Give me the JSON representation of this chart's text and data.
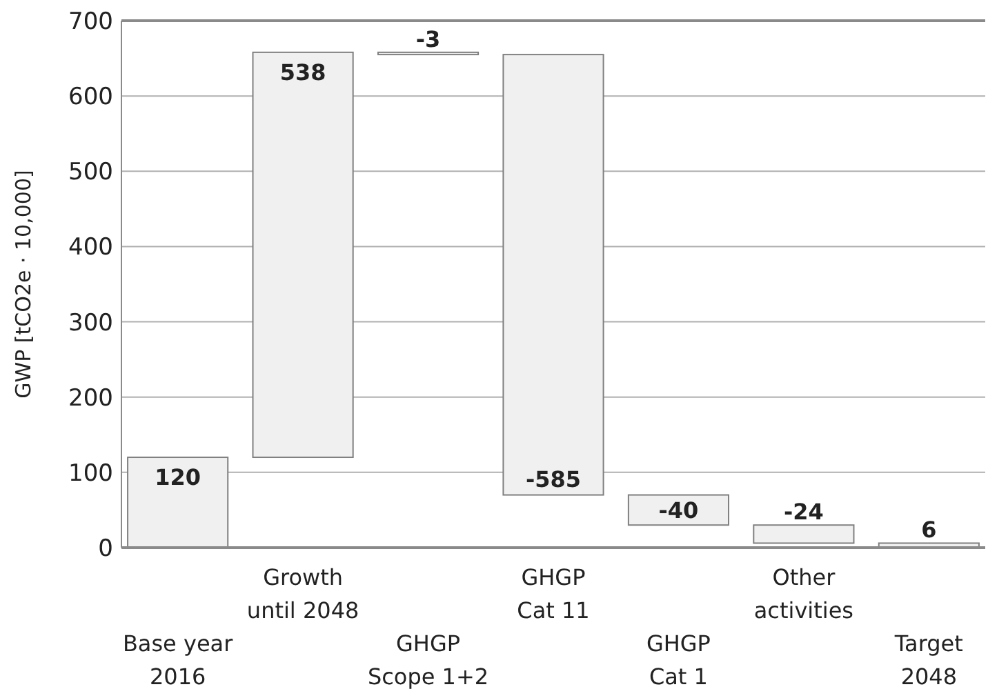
{
  "chart_data": {
    "type": "bar",
    "ylabel": "GWP [tCO2e · 10,000]",
    "categories": [
      "Base year\n2016",
      "Growth\nuntil 2048",
      "GHGP\nScope 1+2",
      "GHGP\nCat 11",
      "GHGP\nCat 1",
      "Other\nactivities",
      "Target\n2048"
    ],
    "values": [
      120,
      538,
      -3,
      -585,
      -40,
      -24,
      6
    ],
    "base": [
      0,
      120,
      658,
      655,
      70,
      30,
      0
    ],
    "color": "#f0f0f0",
    "ylim": [
      0,
      700
    ],
    "yticks": [
      0,
      100,
      200,
      300,
      400,
      500,
      600,
      700
    ],
    "grid": "y",
    "data_labels": true
  }
}
